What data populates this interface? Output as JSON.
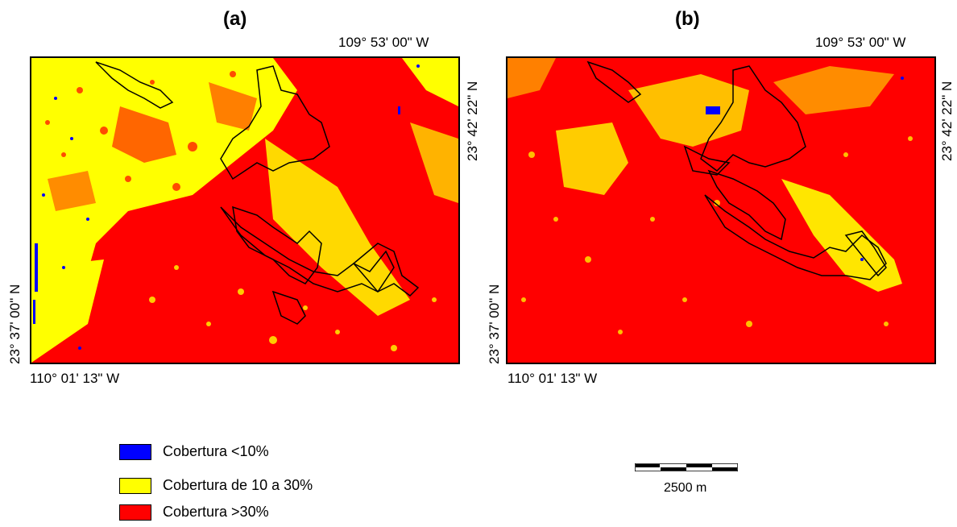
{
  "panels": [
    {
      "label": "(a)",
      "top_right_coord": "109° 53' 00\" W",
      "right_coord": "23° 42' 22\" N",
      "left_coord": "23° 37' 00\" N",
      "bottom_left_coord": "110° 01' 13\" W"
    },
    {
      "label": "(b)",
      "top_right_coord": "109° 53' 00\" W",
      "right_coord": "23° 42' 22\" N",
      "left_coord": "23° 37' 00\" N",
      "bottom_left_coord": "110° 01' 13\" W"
    }
  ],
  "legend": [
    {
      "label": "Cobertura <10%",
      "color": "#0000ff"
    },
    {
      "label": "Cobertura de 10 a 30%",
      "color": "#ffff00"
    },
    {
      "label": "Cobertura >30%",
      "color": "#ff0000"
    }
  ],
  "scale": {
    "label": "2500 m"
  },
  "colors": {
    "low": "#0000ff",
    "mid": "#ffff00",
    "high": "#ff0000",
    "outline": "#000000"
  }
}
